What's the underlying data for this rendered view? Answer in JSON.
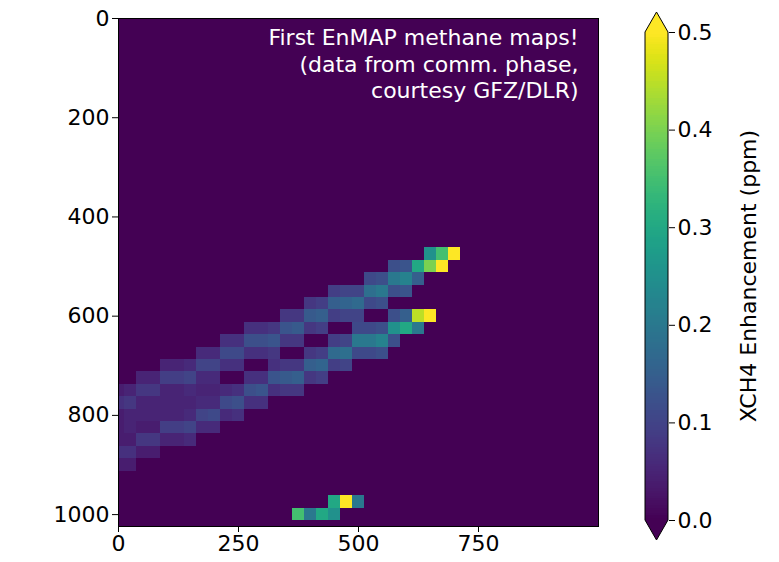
{
  "chart_data": {
    "type": "heatmap",
    "annotation": [
      "First EnMAP methane maps!",
      "(data from comm. phase,",
      "courtesy GFZ/DLR)"
    ],
    "xlim": [
      0,
      1000
    ],
    "xticks": [
      0,
      250,
      500,
      750
    ],
    "ylim": [
      1024,
      0
    ],
    "yticks": [
      0,
      200,
      400,
      600,
      800,
      1000
    ],
    "color": "viridis",
    "colorbar_label": "XCH4 Enhancement (ppm)",
    "color_range": [
      0,
      0.5
    ],
    "color_ticks": [
      {
        "value": 0,
        "label": "0.0"
      },
      0.1,
      0.2,
      0.3,
      0.4,
      0.5
    ],
    "cells": [
      [
        700,
        475,
        0.5
      ],
      [
        675,
        475,
        0.35
      ],
      [
        675,
        500,
        0.5
      ],
      [
        650,
        500,
        0.4
      ],
      [
        650,
        475,
        0.25
      ],
      [
        625,
        500,
        0.3
      ],
      [
        625,
        525,
        0.15
      ],
      [
        600,
        500,
        0.13
      ],
      [
        600,
        525,
        0.22
      ],
      [
        600,
        550,
        0.13
      ],
      [
        575,
        500,
        0.12
      ],
      [
        575,
        525,
        0.2
      ],
      [
        575,
        550,
        0.12
      ],
      [
        550,
        525,
        0.12
      ],
      [
        550,
        550,
        0.2
      ],
      [
        550,
        575,
        0.12
      ],
      [
        525,
        525,
        0.11
      ],
      [
        525,
        550,
        0.18
      ],
      [
        525,
        575,
        0.11
      ],
      [
        500,
        550,
        0.1
      ],
      [
        500,
        575,
        0.17
      ],
      [
        500,
        600,
        0.1
      ],
      [
        475,
        550,
        0.1
      ],
      [
        475,
        575,
        0.16
      ],
      [
        475,
        600,
        0.1
      ],
      [
        450,
        550,
        0.09
      ],
      [
        450,
        575,
        0.15
      ],
      [
        450,
        600,
        0.09
      ],
      [
        425,
        575,
        0.09
      ],
      [
        425,
        600,
        0.15
      ],
      [
        425,
        625,
        0.09
      ],
      [
        400,
        575,
        0.08
      ],
      [
        400,
        600,
        0.14
      ],
      [
        400,
        625,
        0.08
      ],
      [
        375,
        600,
        0.08
      ],
      [
        375,
        625,
        0.14
      ],
      [
        375,
        650,
        0.08
      ],
      [
        350,
        600,
        0.08
      ],
      [
        350,
        625,
        0.13
      ],
      [
        350,
        650,
        0.08
      ],
      [
        325,
        625,
        0.08
      ],
      [
        325,
        650,
        0.13
      ],
      [
        325,
        675,
        0.08
      ],
      [
        300,
        625,
        0.07
      ],
      [
        300,
        650,
        0.12
      ],
      [
        300,
        675,
        0.07
      ],
      [
        275,
        625,
        0.07
      ],
      [
        275,
        650,
        0.12
      ],
      [
        275,
        675,
        0.07
      ],
      [
        250,
        650,
        0.07
      ],
      [
        250,
        675,
        0.11
      ],
      [
        250,
        700,
        0.07
      ],
      [
        225,
        650,
        0.07
      ],
      [
        225,
        675,
        0.11
      ],
      [
        225,
        700,
        0.07
      ],
      [
        200,
        675,
        0.06
      ],
      [
        200,
        700,
        0.1
      ],
      [
        200,
        725,
        0.06
      ],
      [
        200,
        750,
        0.05
      ],
      [
        175,
        675,
        0.06
      ],
      [
        175,
        700,
        0.1
      ],
      [
        175,
        725,
        0.06
      ],
      [
        175,
        750,
        0.05
      ],
      [
        150,
        700,
        0.06
      ],
      [
        150,
        725,
        0.1
      ],
      [
        150,
        750,
        0.06
      ],
      [
        150,
        775,
        0.05
      ],
      [
        125,
        700,
        0.05
      ],
      [
        125,
        725,
        0.09
      ],
      [
        125,
        750,
        0.05
      ],
      [
        125,
        775,
        0.05
      ],
      [
        100,
        700,
        0.05
      ],
      [
        100,
        725,
        0.09
      ],
      [
        100,
        750,
        0.05
      ],
      [
        100,
        775,
        0.05
      ],
      [
        75,
        725,
        0.05
      ],
      [
        75,
        750,
        0.08
      ],
      [
        75,
        775,
        0.05
      ],
      [
        75,
        800,
        0.05
      ],
      [
        50,
        725,
        0.05
      ],
      [
        50,
        750,
        0.08
      ],
      [
        50,
        775,
        0.05
      ],
      [
        50,
        800,
        0.05
      ],
      [
        25,
        750,
        0.05
      ],
      [
        25,
        775,
        0.08
      ],
      [
        25,
        800,
        0.05
      ],
      [
        25,
        825,
        0.05
      ],
      [
        0,
        750,
        0.04
      ],
      [
        0,
        775,
        0.07
      ],
      [
        0,
        800,
        0.04
      ],
      [
        0,
        825,
        0.04
      ],
      [
        650,
        600,
        0.5
      ],
      [
        625,
        600,
        0.45
      ],
      [
        625,
        625,
        0.2
      ],
      [
        600,
        625,
        0.3
      ],
      [
        600,
        600,
        0.15
      ],
      [
        575,
        600,
        0.12
      ],
      [
        575,
        625,
        0.25
      ],
      [
        575,
        650,
        0.12
      ],
      [
        550,
        625,
        0.12
      ],
      [
        550,
        650,
        0.22
      ],
      [
        550,
        675,
        0.12
      ],
      [
        525,
        625,
        0.11
      ],
      [
        525,
        650,
        0.2
      ],
      [
        525,
        675,
        0.11
      ],
      [
        500,
        625,
        0.11
      ],
      [
        500,
        650,
        0.2
      ],
      [
        500,
        675,
        0.11
      ],
      [
        475,
        650,
        0.1
      ],
      [
        475,
        675,
        0.18
      ],
      [
        475,
        700,
        0.1
      ],
      [
        450,
        650,
        0.09
      ],
      [
        450,
        675,
        0.17
      ],
      [
        450,
        700,
        0.09
      ],
      [
        425,
        675,
        0.09
      ],
      [
        425,
        700,
        0.16
      ],
      [
        425,
        725,
        0.09
      ],
      [
        400,
        675,
        0.08
      ],
      [
        400,
        700,
        0.15
      ],
      [
        400,
        725,
        0.08
      ],
      [
        375,
        700,
        0.08
      ],
      [
        375,
        725,
        0.15
      ],
      [
        375,
        750,
        0.08
      ],
      [
        350,
        700,
        0.08
      ],
      [
        350,
        725,
        0.14
      ],
      [
        350,
        750,
        0.08
      ],
      [
        325,
        700,
        0.07
      ],
      [
        325,
        725,
        0.13
      ],
      [
        325,
        750,
        0.07
      ],
      [
        300,
        725,
        0.07
      ],
      [
        300,
        750,
        0.13
      ],
      [
        300,
        775,
        0.07
      ],
      [
        275,
        725,
        0.07
      ],
      [
        275,
        750,
        0.12
      ],
      [
        275,
        775,
        0.07
      ],
      [
        250,
        750,
        0.07
      ],
      [
        250,
        775,
        0.12
      ],
      [
        250,
        800,
        0.07
      ],
      [
        225,
        750,
        0.06
      ],
      [
        225,
        775,
        0.11
      ],
      [
        225,
        800,
        0.06
      ],
      [
        200,
        775,
        0.06
      ],
      [
        200,
        800,
        0.11
      ],
      [
        200,
        825,
        0.06
      ],
      [
        175,
        775,
        0.06
      ],
      [
        175,
        800,
        0.1
      ],
      [
        175,
        825,
        0.06
      ],
      [
        150,
        800,
        0.06
      ],
      [
        150,
        825,
        0.1
      ],
      [
        150,
        850,
        0.06
      ],
      [
        125,
        800,
        0.05
      ],
      [
        125,
        825,
        0.09
      ],
      [
        125,
        850,
        0.05
      ],
      [
        100,
        800,
        0.05
      ],
      [
        100,
        825,
        0.09
      ],
      [
        100,
        850,
        0.05
      ],
      [
        75,
        825,
        0.04
      ],
      [
        75,
        850,
        0.08
      ],
      [
        75,
        875,
        0.04
      ],
      [
        50,
        825,
        0.04
      ],
      [
        50,
        850,
        0.08
      ],
      [
        50,
        875,
        0.04
      ],
      [
        25,
        850,
        0.04
      ],
      [
        25,
        875,
        0.07
      ],
      [
        25,
        900,
        0.04
      ],
      [
        0,
        850,
        0.04
      ],
      [
        0,
        875,
        0.07
      ],
      [
        0,
        900,
        0.04
      ],
      [
        500,
        975,
        0.2
      ],
      [
        475,
        975,
        0.5
      ],
      [
        450,
        975,
        0.3
      ],
      [
        450,
        1000,
        0.25
      ],
      [
        425,
        1000,
        0.3
      ],
      [
        400,
        1000,
        0.2
      ],
      [
        375,
        1000,
        0.35
      ]
    ]
  }
}
